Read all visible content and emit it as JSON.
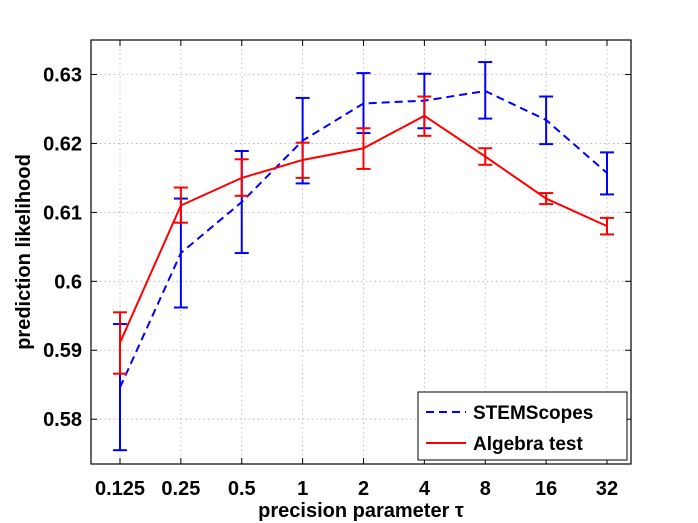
{
  "chart_data": {
    "type": "line",
    "title": "",
    "xlabel": "precision parameter τ",
    "ylabel": "prediction likelihood",
    "categories": [
      "0.125",
      "0.25",
      "0.5",
      "1",
      "2",
      "4",
      "8",
      "16",
      "32"
    ],
    "ylim": [
      0.5735,
      0.635
    ],
    "yticks": [
      0.58,
      0.59,
      0.6,
      0.61,
      0.62,
      0.63
    ],
    "ytick_labels": [
      "0.58",
      "0.59",
      "0.6",
      "0.61",
      "0.62",
      "0.63"
    ],
    "grid": true,
    "legend_position": "bottom-right",
    "series": [
      {
        "name": "STEMScopes",
        "color": "#0000ff",
        "style": "dashed",
        "values": [
          0.5846,
          0.6041,
          0.6115,
          0.6204,
          0.6258,
          0.6262,
          0.6276,
          0.6234,
          0.6157
        ],
        "err_low": [
          0.5755,
          0.5962,
          0.6041,
          0.6142,
          0.6215,
          0.6222,
          0.6236,
          0.6199,
          0.6126
        ],
        "err_high": [
          0.5938,
          0.612,
          0.6189,
          0.6266,
          0.6302,
          0.6301,
          0.6318,
          0.6268,
          0.6187
        ]
      },
      {
        "name": "Algebra test",
        "color": "#ff0000",
        "style": "solid",
        "values": [
          0.5911,
          0.611,
          0.615,
          0.6176,
          0.6193,
          0.624,
          0.6181,
          0.612,
          0.608
        ],
        "err_low": [
          0.5866,
          0.6085,
          0.6124,
          0.615,
          0.6163,
          0.6211,
          0.6169,
          0.6112,
          0.6068
        ],
        "err_high": [
          0.5955,
          0.6136,
          0.6177,
          0.6201,
          0.6222,
          0.6268,
          0.6193,
          0.6128,
          0.6092
        ]
      }
    ]
  }
}
